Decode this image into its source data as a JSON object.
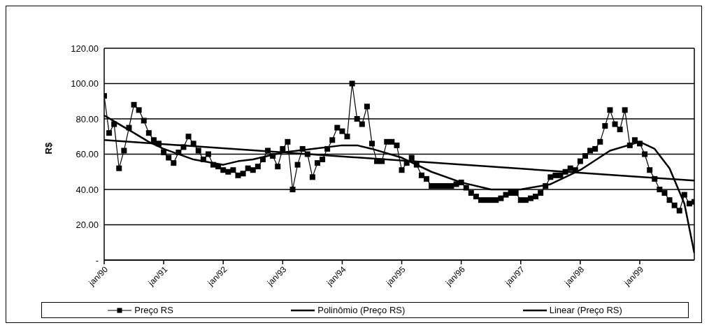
{
  "chart_data": {
    "type": "line",
    "ylabel": "R$",
    "xlim": [
      "1990-01",
      "1999-12"
    ],
    "xticks": [
      {
        "value": "1990-01",
        "label": "jan/90"
      },
      {
        "value": "1991-01",
        "label": "jan/91"
      },
      {
        "value": "1992-01",
        "label": "jan/92"
      },
      {
        "value": "1993-01",
        "label": "jan/93"
      },
      {
        "value": "1994-01",
        "label": "jan/94"
      },
      {
        "value": "1995-01",
        "label": "jan/95"
      },
      {
        "value": "1996-01",
        "label": "jan/96"
      },
      {
        "value": "1997-01",
        "label": "jan/97"
      },
      {
        "value": "1998-01",
        "label": "jan/98"
      },
      {
        "value": "1999-01",
        "label": "jan/99"
      }
    ],
    "ylim": [
      0,
      120
    ],
    "yticks": [
      {
        "value": 0,
        "label": "-"
      },
      {
        "value": 20,
        "label": "20.00"
      },
      {
        "value": 40,
        "label": "40.00"
      },
      {
        "value": 60,
        "label": "60.00"
      },
      {
        "value": 80,
        "label": "80.00"
      },
      {
        "value": 100,
        "label": "100.00"
      },
      {
        "value": 120,
        "label": "120.00"
      }
    ],
    "grid": "y",
    "legend": "bottom",
    "x": [
      "1990-01",
      "1990-02",
      "1990-03",
      "1990-04",
      "1990-05",
      "1990-06",
      "1990-07",
      "1990-08",
      "1990-09",
      "1990-10",
      "1990-11",
      "1990-12",
      "1991-01",
      "1991-02",
      "1991-03",
      "1991-04",
      "1991-05",
      "1991-06",
      "1991-07",
      "1991-08",
      "1991-09",
      "1991-10",
      "1991-11",
      "1991-12",
      "1992-01",
      "1992-02",
      "1992-03",
      "1992-04",
      "1992-05",
      "1992-06",
      "1992-07",
      "1992-08",
      "1992-09",
      "1992-10",
      "1992-11",
      "1992-12",
      "1993-01",
      "1993-02",
      "1993-03",
      "1993-04",
      "1993-05",
      "1993-06",
      "1993-07",
      "1993-08",
      "1993-09",
      "1993-10",
      "1993-11",
      "1993-12",
      "1994-01",
      "1994-02",
      "1994-03",
      "1994-04",
      "1994-05",
      "1994-06",
      "1994-07",
      "1994-08",
      "1994-09",
      "1994-10",
      "1994-11",
      "1994-12",
      "1995-01",
      "1995-02",
      "1995-03",
      "1995-04",
      "1995-05",
      "1995-06",
      "1995-07",
      "1995-08",
      "1995-09",
      "1995-10",
      "1995-11",
      "1995-12",
      "1996-01",
      "1996-02",
      "1996-03",
      "1996-04",
      "1996-05",
      "1996-06",
      "1996-07",
      "1996-08",
      "1996-09",
      "1996-10",
      "1996-11",
      "1996-12",
      "1997-01",
      "1997-02",
      "1997-03",
      "1997-04",
      "1997-05",
      "1997-06",
      "1997-07",
      "1997-08",
      "1997-09",
      "1997-10",
      "1997-11",
      "1997-12",
      "1998-01",
      "1998-02",
      "1998-03",
      "1998-04",
      "1998-05",
      "1998-06",
      "1998-07",
      "1998-08",
      "1998-09",
      "1998-10",
      "1998-11",
      "1998-12",
      "1999-01",
      "1999-02",
      "1999-03",
      "1999-04",
      "1999-05",
      "1999-06",
      "1999-07",
      "1999-08",
      "1999-09",
      "1999-10",
      "1999-11",
      "1999-12"
    ],
    "series": [
      {
        "name": "Preço RS",
        "color": "#000000",
        "marker": "square",
        "values": [
          93,
          72,
          77,
          52,
          62,
          75,
          88,
          85,
          79,
          72,
          68,
          66,
          61,
          58,
          55,
          61,
          64,
          70,
          66,
          62,
          57,
          60,
          54,
          53,
          51,
          50,
          51,
          48,
          49,
          52,
          51,
          53,
          57,
          62,
          59,
          53,
          63,
          67,
          40,
          54,
          63,
          60,
          47,
          55,
          57,
          63,
          68,
          75,
          73,
          70,
          100,
          80,
          77,
          87,
          66,
          56,
          56,
          67,
          67,
          65,
          51,
          55,
          58,
          54,
          48,
          46,
          42,
          42,
          42,
          42,
          42,
          43,
          44,
          41,
          38,
          36,
          34,
          34,
          34,
          34,
          35,
          37,
          38,
          38,
          34,
          34,
          35,
          36,
          38,
          42,
          47,
          48,
          48,
          50,
          52,
          51,
          56,
          59,
          62,
          63,
          67,
          76,
          85,
          77,
          74,
          85,
          65,
          68,
          66,
          60,
          51,
          46,
          40,
          38,
          34,
          31,
          28,
          37,
          32,
          33
        ]
      },
      {
        "name": "Polinômio (Preço RS)",
        "color": "#000000",
        "marker": "none",
        "x": [
          "1990-01",
          "1990-04",
          "1990-07",
          "1990-10",
          "1991-01",
          "1991-07",
          "1992-01",
          "1992-04",
          "1992-07",
          "1993-01",
          "1993-07",
          "1994-01",
          "1994-04",
          "1994-07",
          "1995-01",
          "1995-07",
          "1996-01",
          "1996-07",
          "1997-01",
          "1997-07",
          "1998-01",
          "1998-07",
          "1999-01",
          "1999-04",
          "1999-07",
          "1999-10",
          "1999-12"
        ],
        "values": [
          82,
          77,
          72,
          67,
          63,
          57,
          54,
          56,
          57,
          61,
          63,
          65,
          65,
          63,
          58,
          50,
          44,
          40,
          40,
          43,
          51,
          62,
          67,
          63,
          52,
          32,
          4
        ]
      },
      {
        "name": "Linear (Preço RS)",
        "color": "#000000",
        "marker": "none",
        "x": [
          "1990-01",
          "1999-12"
        ],
        "values": [
          68,
          45
        ]
      }
    ]
  }
}
